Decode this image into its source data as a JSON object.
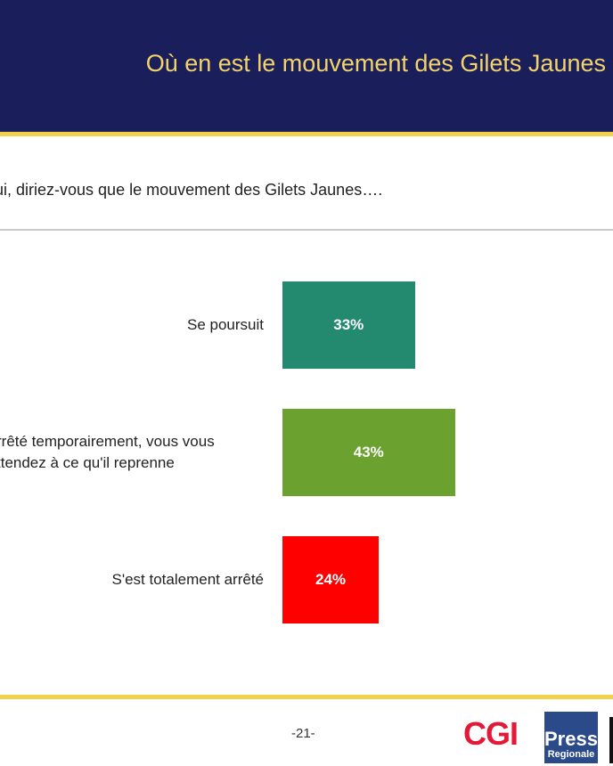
{
  "header": {
    "title": "Où en est le mouvement des Gilets Jaunes"
  },
  "question": "ui, diriez-vous que le mouvement des Gilets Jaunes….",
  "chart_data": {
    "type": "bar",
    "orientation": "horizontal",
    "categories": [
      "Se poursuit",
      "rrêté temporairement, vous vous\nttendez à ce qu'il reprenne",
      "S'est totalement arrêté"
    ],
    "values": [
      33,
      43,
      24
    ],
    "data_labels": [
      "33%",
      "43%",
      "24%"
    ],
    "colors": [
      "#23896f",
      "#6ba22f",
      "#fe0000"
    ],
    "xlim": [
      0,
      100
    ]
  },
  "footer": {
    "page": "-21-",
    "logo_cgi": "CGI",
    "logo_presse_1": "Presse",
    "logo_presse_2": "Regionale"
  }
}
